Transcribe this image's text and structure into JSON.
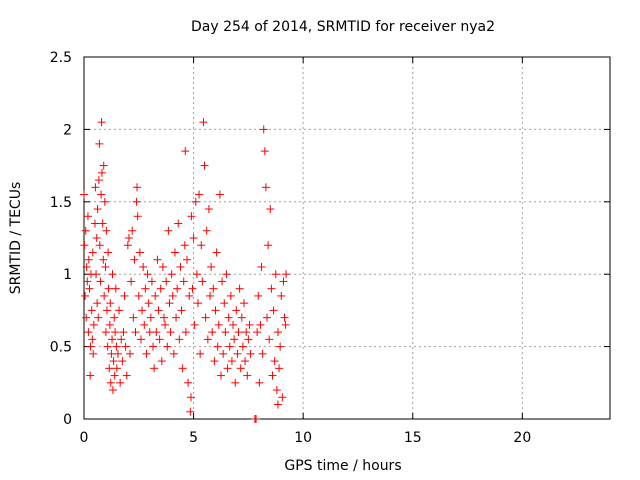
{
  "chart_data": {
    "type": "scatter",
    "title": "Day 254 of 2014, SRMTID for receiver nya2",
    "xlabel": "GPS time / hours",
    "ylabel": "SRMTID / TECUs",
    "xlim": [
      0,
      24
    ],
    "ylim": [
      0,
      2.5
    ],
    "xticks": [
      0,
      5,
      10,
      15,
      20
    ],
    "xtick_labels": [
      "0",
      "5",
      "10",
      "15",
      "20"
    ],
    "yticks": [
      0,
      0.5,
      1,
      1.5,
      2,
      2.5
    ],
    "ytick_labels": [
      "0",
      "0.5",
      "1",
      "1.5",
      "2",
      "2.5"
    ],
    "grid": true,
    "marker": "+",
    "color": "#ff0000",
    "series": [
      {
        "points": [
          [
            0.0,
            1.55
          ],
          [
            0.02,
            1.2
          ],
          [
            0.05,
            0.85
          ],
          [
            0.08,
            1.3
          ],
          [
            0.1,
            0.7
          ],
          [
            0.12,
            1.05
          ],
          [
            0.15,
            0.95
          ],
          [
            0.18,
            1.4
          ],
          [
            0.2,
            0.6
          ],
          [
            0.22,
            1.1
          ],
          [
            0.25,
            0.9
          ],
          [
            0.28,
            0.3
          ],
          [
            0.3,
            0.5
          ],
          [
            0.32,
            1.0
          ],
          [
            0.35,
            0.75
          ],
          [
            0.38,
            0.55
          ],
          [
            0.4,
            1.15
          ],
          [
            0.42,
            0.45
          ],
          [
            0.45,
            0.65
          ],
          [
            0.5,
            1.35
          ],
          [
            0.52,
            1.6
          ],
          [
            0.55,
            1.0
          ],
          [
            0.58,
            1.25
          ],
          [
            0.6,
            0.8
          ],
          [
            0.62,
            1.45
          ],
          [
            0.65,
            0.7
          ],
          [
            0.68,
            1.65
          ],
          [
            0.7,
            1.9
          ],
          [
            0.72,
            1.2
          ],
          [
            0.75,
            0.95
          ],
          [
            0.78,
            1.55
          ],
          [
            0.8,
            2.05
          ],
          [
            0.82,
            1.7
          ],
          [
            0.85,
            1.35
          ],
          [
            0.88,
            1.1
          ],
          [
            0.9,
            1.75
          ],
          [
            0.92,
            0.85
          ],
          [
            0.95,
            1.5
          ],
          [
            0.98,
            1.05
          ],
          [
            1.0,
            0.6
          ],
          [
            1.02,
            1.3
          ],
          [
            1.05,
            0.75
          ],
          [
            1.08,
            0.5
          ],
          [
            1.1,
            1.15
          ],
          [
            1.12,
            0.9
          ],
          [
            1.15,
            0.35
          ],
          [
            1.18,
            0.65
          ],
          [
            1.2,
            0.8
          ],
          [
            1.22,
            0.25
          ],
          [
            1.25,
            0.45
          ],
          [
            1.28,
            0.55
          ],
          [
            1.3,
            1.0
          ],
          [
            1.32,
            0.2
          ],
          [
            1.35,
            0.4
          ],
          [
            1.38,
            0.7
          ],
          [
            1.4,
            0.3
          ],
          [
            1.42,
            0.6
          ],
          [
            1.45,
            0.9
          ],
          [
            1.48,
            0.5
          ],
          [
            1.5,
            0.35
          ],
          [
            1.55,
            0.45
          ],
          [
            1.6,
            0.75
          ],
          [
            1.65,
            0.25
          ],
          [
            1.7,
            0.55
          ],
          [
            1.75,
            0.4
          ],
          [
            1.8,
            0.6
          ],
          [
            1.85,
            0.85
          ],
          [
            1.9,
            0.5
          ],
          [
            1.95,
            0.3
          ],
          [
            2.0,
            1.2
          ],
          [
            2.05,
            1.25
          ],
          [
            2.1,
            0.45
          ],
          [
            2.15,
            0.95
          ],
          [
            2.2,
            1.3
          ],
          [
            2.25,
            0.7
          ],
          [
            2.3,
            1.1
          ],
          [
            2.35,
            0.6
          ],
          [
            2.4,
            1.5
          ],
          [
            2.42,
            1.6
          ],
          [
            2.45,
            1.4
          ],
          [
            2.5,
            0.85
          ],
          [
            2.55,
            1.15
          ],
          [
            2.6,
            0.55
          ],
          [
            2.65,
            0.75
          ],
          [
            2.7,
            1.05
          ],
          [
            2.75,
            0.65
          ],
          [
            2.8,
            0.9
          ],
          [
            2.85,
            0.45
          ],
          [
            2.9,
            1.0
          ],
          [
            2.95,
            0.8
          ],
          [
            3.0,
            0.6
          ],
          [
            3.05,
            0.7
          ],
          [
            3.1,
            0.95
          ],
          [
            3.15,
            0.5
          ],
          [
            3.2,
            0.35
          ],
          [
            3.25,
            0.85
          ],
          [
            3.3,
            0.6
          ],
          [
            3.35,
            1.1
          ],
          [
            3.4,
            0.75
          ],
          [
            3.45,
            0.55
          ],
          [
            3.5,
            0.9
          ],
          [
            3.55,
            0.4
          ],
          [
            3.6,
            1.05
          ],
          [
            3.65,
            0.7
          ],
          [
            3.7,
            0.65
          ],
          [
            3.75,
            0.95
          ],
          [
            3.8,
            0.5
          ],
          [
            3.85,
            1.3
          ],
          [
            3.9,
            0.8
          ],
          [
            3.95,
            0.6
          ],
          [
            4.0,
            1.0
          ],
          [
            4.05,
            0.85
          ],
          [
            4.1,
            0.45
          ],
          [
            4.15,
            1.15
          ],
          [
            4.2,
            0.7
          ],
          [
            4.25,
            0.9
          ],
          [
            4.3,
            1.35
          ],
          [
            4.35,
            0.55
          ],
          [
            4.4,
            1.05
          ],
          [
            4.45,
            0.75
          ],
          [
            4.5,
            0.35
          ],
          [
            4.55,
            0.95
          ],
          [
            4.6,
            1.2
          ],
          [
            4.62,
            1.85
          ],
          [
            4.65,
            0.6
          ],
          [
            4.7,
            1.1
          ],
          [
            4.75,
            0.25
          ],
          [
            4.8,
            0.85
          ],
          [
            4.85,
            0.05
          ],
          [
            4.88,
            0.15
          ],
          [
            4.9,
            1.4
          ],
          [
            4.95,
            0.9
          ],
          [
            5.0,
            1.25
          ],
          [
            5.05,
            0.65
          ],
          [
            5.1,
            1.5
          ],
          [
            5.15,
            1.0
          ],
          [
            5.2,
            0.8
          ],
          [
            5.25,
            1.55
          ],
          [
            5.3,
            0.45
          ],
          [
            5.35,
            1.2
          ],
          [
            5.4,
            0.95
          ],
          [
            5.45,
            2.05
          ],
          [
            5.5,
            1.75
          ],
          [
            5.55,
            0.7
          ],
          [
            5.6,
            1.3
          ],
          [
            5.65,
            0.55
          ],
          [
            5.7,
            1.45
          ],
          [
            5.75,
            0.85
          ],
          [
            5.8,
            1.05
          ],
          [
            5.85,
            0.6
          ],
          [
            5.9,
            0.9
          ],
          [
            5.95,
            0.4
          ],
          [
            6.0,
            0.75
          ],
          [
            6.05,
            1.15
          ],
          [
            6.1,
            0.5
          ],
          [
            6.15,
            0.65
          ],
          [
            6.2,
            1.55
          ],
          [
            6.25,
            0.3
          ],
          [
            6.3,
            0.95
          ],
          [
            6.35,
            0.45
          ],
          [
            6.4,
            0.8
          ],
          [
            6.45,
            0.6
          ],
          [
            6.5,
            1.0
          ],
          [
            6.55,
            0.35
          ],
          [
            6.6,
            0.7
          ],
          [
            6.65,
            0.5
          ],
          [
            6.7,
            0.85
          ],
          [
            6.75,
            0.4
          ],
          [
            6.8,
            0.65
          ],
          [
            6.85,
            0.55
          ],
          [
            6.9,
            0.25
          ],
          [
            6.95,
            0.75
          ],
          [
            7.0,
            0.45
          ],
          [
            7.05,
            0.6
          ],
          [
            7.1,
            0.9
          ],
          [
            7.15,
            0.35
          ],
          [
            7.2,
            0.7
          ],
          [
            7.25,
            0.5
          ],
          [
            7.3,
            0.8
          ],
          [
            7.35,
            0.4
          ],
          [
            7.4,
            0.6
          ],
          [
            7.45,
            0.3
          ],
          [
            7.5,
            0.55
          ],
          [
            7.55,
            0.65
          ],
          [
            7.6,
            0.45
          ],
          [
            7.8,
            0.0
          ],
          [
            7.85,
            0.0
          ],
          [
            7.9,
            0.6
          ],
          [
            7.95,
            0.85
          ],
          [
            8.0,
            0.25
          ],
          [
            8.05,
            0.65
          ],
          [
            8.1,
            1.05
          ],
          [
            8.15,
            0.45
          ],
          [
            8.2,
            2.0
          ],
          [
            8.25,
            1.85
          ],
          [
            8.3,
            1.6
          ],
          [
            8.35,
            0.7
          ],
          [
            8.4,
            1.2
          ],
          [
            8.45,
            0.55
          ],
          [
            8.5,
            1.45
          ],
          [
            8.55,
            0.9
          ],
          [
            8.6,
            0.3
          ],
          [
            8.65,
            0.75
          ],
          [
            8.7,
            0.4
          ],
          [
            8.75,
            1.0
          ],
          [
            8.8,
            0.2
          ],
          [
            8.85,
            0.6
          ],
          [
            8.9,
            0.35
          ],
          [
            8.95,
            0.5
          ],
          [
            9.0,
            0.85
          ],
          [
            9.05,
            0.15
          ],
          [
            9.1,
            0.95
          ],
          [
            9.15,
            0.7
          ],
          [
            9.2,
            0.65
          ],
          [
            9.22,
            1.0
          ],
          [
            8.85,
            0.1
          ]
        ]
      }
    ]
  }
}
